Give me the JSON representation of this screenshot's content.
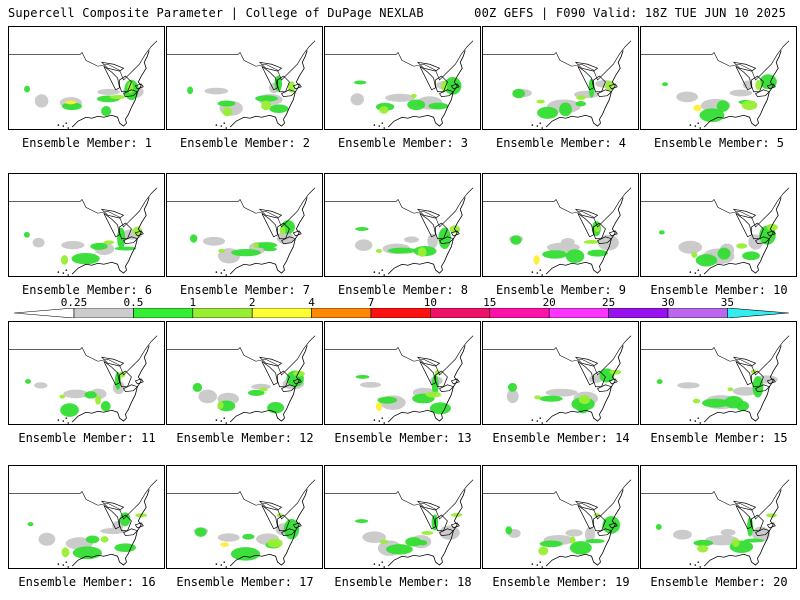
{
  "header": {
    "left": "Supercell Composite Parameter | College of DuPage NEXLAB",
    "right": "00Z GEFS | F090 Valid: 18Z TUE JUN 10 2025"
  },
  "colorbar": {
    "ticks": [
      "0.25",
      "0.5",
      "1",
      "2",
      "4",
      "7",
      "10",
      "15",
      "20",
      "25",
      "30",
      "35"
    ],
    "colors": [
      "#cccccc",
      "#33ee33",
      "#99ee33",
      "#ffff33",
      "#ff8800",
      "#ff1111",
      "#ee1166",
      "#ff11aa",
      "#ff33ff",
      "#9911ee",
      "#bb66ee",
      "#33eeee"
    ]
  },
  "panels": [
    {
      "label": "Ensemble Member: 1"
    },
    {
      "label": "Ensemble Member: 2"
    },
    {
      "label": "Ensemble Member: 3"
    },
    {
      "label": "Ensemble Member: 4"
    },
    {
      "label": "Ensemble Member: 5"
    },
    {
      "label": "Ensemble Member: 6"
    },
    {
      "label": "Ensemble Member: 7"
    },
    {
      "label": "Ensemble Member: 8"
    },
    {
      "label": "Ensemble Member: 9"
    },
    {
      "label": "Ensemble Member: 10"
    },
    {
      "label": "Ensemble Member: 11"
    },
    {
      "label": "Ensemble Member: 12"
    },
    {
      "label": "Ensemble Member: 13"
    },
    {
      "label": "Ensemble Member: 14"
    },
    {
      "label": "Ensemble Member: 15"
    },
    {
      "label": "Ensemble Member: 16"
    },
    {
      "label": "Ensemble Member: 17"
    },
    {
      "label": "Ensemble Member: 18"
    },
    {
      "label": "Ensemble Member: 19"
    },
    {
      "label": "Ensemble Member: 20"
    }
  ]
}
